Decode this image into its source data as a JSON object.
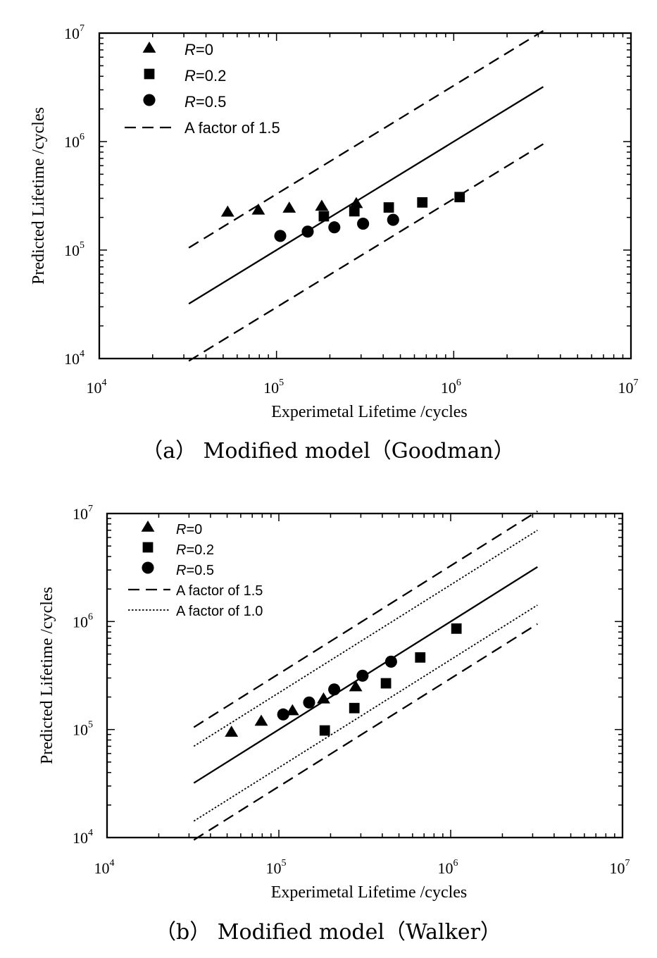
{
  "chart_data": [
    {
      "type": "scatter",
      "panel": "a",
      "caption": "（a）  Modified model（Goodman）",
      "xlabel": "Experimetal Lifetime /cycles",
      "ylabel": "Predicted Lifetime /cycles",
      "xscale": "log",
      "yscale": "log",
      "xlim": [
        10000,
        10000000
      ],
      "ylim": [
        10000,
        10000000
      ],
      "x_ticks": [
        {
          "base": "10",
          "exp": "4"
        },
        {
          "base": "10",
          "exp": "5"
        },
        {
          "base": "10",
          "exp": "6"
        },
        {
          "base": "10",
          "exp": "7"
        }
      ],
      "y_ticks": [
        {
          "base": "10",
          "exp": "4"
        },
        {
          "base": "10",
          "exp": "5"
        },
        {
          "base": "10",
          "exp": "6"
        },
        {
          "base": "10",
          "exp": "7"
        }
      ],
      "legend_position": "top-left",
      "series": [
        {
          "name": "=0",
          "italic_prefix": "R",
          "marker": "triangle",
          "x": [
            53000,
            79000,
            118000,
            180000,
            282000
          ],
          "y": [
            225000,
            235000,
            245000,
            255000,
            270000
          ]
        },
        {
          "name": "=0.2",
          "italic_prefix": "R",
          "marker": "square",
          "x": [
            185000,
            275000,
            430000,
            665000,
            1080000
          ],
          "y": [
            205000,
            228000,
            247000,
            275000,
            308000
          ]
        },
        {
          "name": "=0.5",
          "italic_prefix": "R",
          "marker": "circle",
          "x": [
            105000,
            150000,
            212000,
            308000,
            455000
          ],
          "y": [
            135000,
            148000,
            162000,
            175000,
            190000
          ]
        }
      ],
      "lines": [
        {
          "name": "A factor of 1.5",
          "style": "dashed",
          "x": [
            32000,
            3200000
          ],
          "y": [
            105000,
            10500000
          ]
        },
        {
          "style": "dashed",
          "x": [
            32000,
            3200000
          ],
          "y": [
            9500,
            950000
          ]
        },
        {
          "style": "solid",
          "x": [
            32000,
            3200000
          ],
          "y": [
            32000,
            3200000
          ]
        }
      ]
    },
    {
      "type": "scatter",
      "panel": "b",
      "caption": "（b）  Modified model（Walker）",
      "xlabel": "Experimetal Lifetime /cycles",
      "ylabel": "Predicted Lifetime /cycles",
      "xscale": "log",
      "yscale": "log",
      "xlim": [
        10000,
        10000000
      ],
      "ylim": [
        10000,
        10000000
      ],
      "x_ticks": [
        {
          "base": "10",
          "exp": "4"
        },
        {
          "base": "10",
          "exp": "5"
        },
        {
          "base": "10",
          "exp": "6"
        },
        {
          "base": "10",
          "exp": "7"
        }
      ],
      "y_ticks": [
        {
          "base": "10",
          "exp": "4"
        },
        {
          "base": "10",
          "exp": "5"
        },
        {
          "base": "10",
          "exp": "6"
        },
        {
          "base": "10",
          "exp": "7"
        }
      ],
      "legend_position": "top-left",
      "series": [
        {
          "name": "=0",
          "italic_prefix": "R",
          "marker": "triangle",
          "x": [
            53000,
            79000,
            120000,
            182000,
            280000
          ],
          "y": [
            95000,
            120000,
            150000,
            193000,
            250000
          ]
        },
        {
          "name": "=0.2",
          "italic_prefix": "R",
          "marker": "square",
          "x": [
            185000,
            275000,
            420000,
            665000,
            1080000
          ],
          "y": [
            98000,
            158000,
            268000,
            465000,
            860000
          ]
        },
        {
          "name": "=0.5",
          "italic_prefix": "R",
          "marker": "circle",
          "x": [
            106000,
            150000,
            210000,
            307000,
            450000
          ],
          "y": [
            138000,
            178000,
            235000,
            315000,
            425000
          ]
        }
      ],
      "lines": [
        {
          "name": "A factor of 1.5",
          "style": "dashed",
          "x": [
            32000,
            3200000
          ],
          "y": [
            105000,
            10500000
          ]
        },
        {
          "name": "A factor of 1.0",
          "style": "dotted",
          "x": [
            32000,
            3200000
          ],
          "y": [
            70000,
            7000000
          ]
        },
        {
          "style": "solid",
          "x": [
            32000,
            3200000
          ],
          "y": [
            32000,
            3200000
          ]
        },
        {
          "style": "dotted",
          "x": [
            32000,
            3200000
          ],
          "y": [
            14200,
            1420000
          ]
        },
        {
          "style": "dashed",
          "x": [
            32000,
            3200000
          ],
          "y": [
            9500,
            950000
          ]
        }
      ]
    }
  ]
}
